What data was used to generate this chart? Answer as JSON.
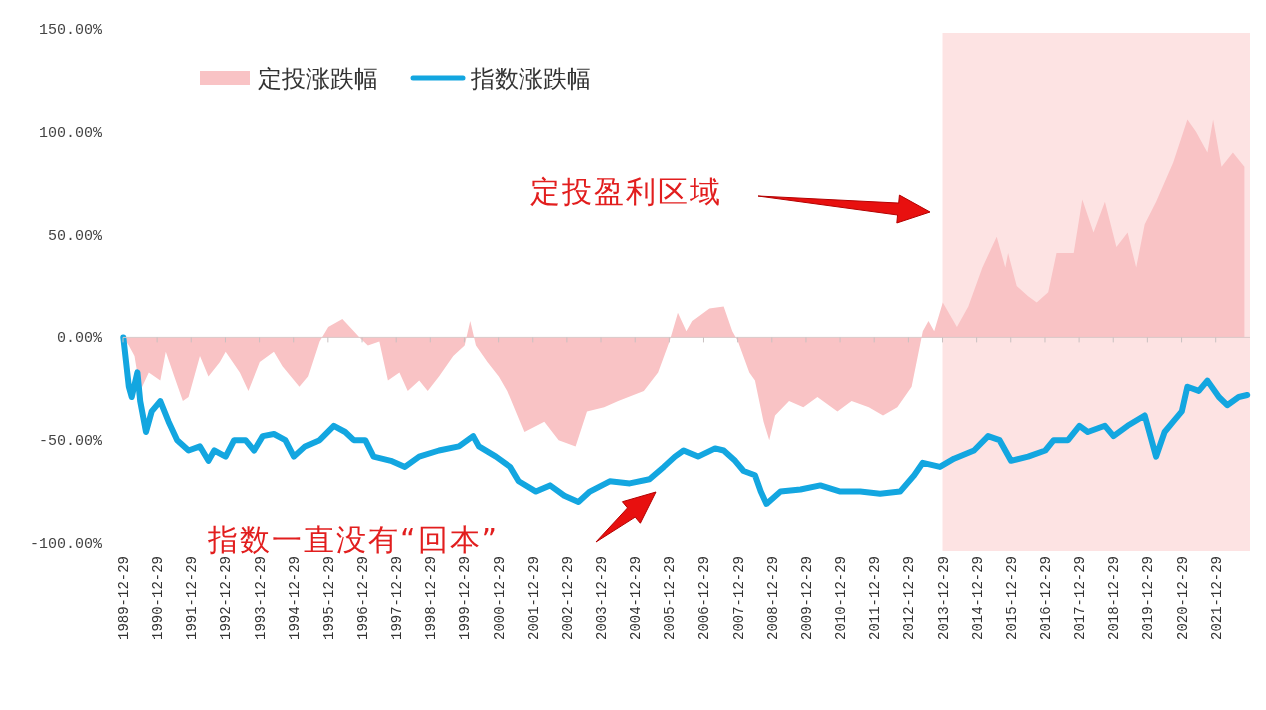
{
  "chart_data": {
    "type": "line",
    "legend": "top left",
    "xlim": [
      "1989-12-29",
      "2022-12-31"
    ],
    "xticks": [
      "1989-12-29",
      "1990-12-29",
      "1991-12-29",
      "1992-12-29",
      "1993-12-29",
      "1994-12-29",
      "1995-12-29",
      "1996-12-29",
      "1997-12-29",
      "1998-12-29",
      "1999-12-29",
      "2000-12-29",
      "2001-12-29",
      "2002-12-29",
      "2003-12-29",
      "2004-12-29",
      "2005-12-29",
      "2006-12-29",
      "2007-12-29",
      "2008-12-29",
      "2009-12-29",
      "2010-12-29",
      "2011-12-29",
      "2012-12-29",
      "2013-12-29",
      "2014-12-29",
      "2015-12-29",
      "2016-12-29",
      "2017-12-29",
      "2018-12-29",
      "2019-12-29",
      "2020-12-29",
      "2021-12-29"
    ],
    "ylim": [
      -100,
      150
    ],
    "yticks": [
      {
        "value": -100,
        "label": "-100.00%"
      },
      {
        "value": -50,
        "label": "-50.00%"
      },
      {
        "value": 0,
        "label": "0.00%"
      },
      {
        "value": 50,
        "label": "50.00%"
      },
      {
        "value": 100,
        "label": "100.00%"
      },
      {
        "value": 150,
        "label": "150.00%"
      }
    ],
    "bands": [
      {
        "axis": "x",
        "from": "2013-12-29",
        "to": "2022-12-31",
        "color": "#fde3e3"
      }
    ],
    "annotations": [
      "定投盈利区域",
      "指数一直没有“回本”"
    ],
    "series": [
      {
        "name": "定投涨跌幅",
        "type": "area",
        "color": "#f9c3c5",
        "x": [
          "1990-01",
          "1990-03",
          "1990-05",
          "1990-07",
          "1990-10",
          "1991-02",
          "1991-04",
          "1991-07",
          "1991-10",
          "1991-12",
          "1992-04",
          "1992-07",
          "1992-11",
          "1993-01",
          "1993-06",
          "1993-09",
          "1994-01",
          "1994-06",
          "1994-09",
          "1995-03",
          "1995-06",
          "1995-10",
          "1996-01",
          "1996-06",
          "1996-10",
          "1996-12",
          "1997-03",
          "1997-07",
          "1997-10",
          "1998-02",
          "1998-05",
          "1998-09",
          "1998-12",
          "1999-04",
          "1999-09",
          "2000-01",
          "2000-03",
          "2000-05",
          "2000-09",
          "2001-01",
          "2001-04",
          "2001-10",
          "2002-05",
          "2002-10",
          "2003-04",
          "2003-08",
          "2004-02",
          "2004-07",
          "2005-04",
          "2005-09",
          "2006-01",
          "2006-04",
          "2006-07",
          "2006-09",
          "2007-03",
          "2007-08",
          "2007-11",
          "2008-01",
          "2008-05",
          "2008-07",
          "2008-10",
          "2008-12",
          "2009-02",
          "2009-07",
          "2009-12",
          "2010-05",
          "2010-12",
          "2011-05",
          "2011-11",
          "2012-04",
          "2012-09",
          "2013-02",
          "2013-06",
          "2013-08",
          "2013-10",
          "2014-01",
          "2014-06",
          "2014-10",
          "2015-03",
          "2015-08",
          "2015-11",
          "2015-12",
          "2016-03",
          "2016-07",
          "2016-10",
          "2017-02",
          "2017-05",
          "2017-11",
          "2018-02",
          "2018-06",
          "2018-10",
          "2019-02",
          "2019-06",
          "2019-09",
          "2019-12",
          "2020-04",
          "2020-10",
          "2021-03",
          "2021-06",
          "2021-10",
          "2021-12",
          "2022-03",
          "2022-07",
          "2022-11"
        ],
        "values": [
          0,
          -4,
          -9,
          -26,
          -17,
          -21,
          -7,
          -19,
          -31,
          -29,
          -9,
          -19,
          -12,
          -7,
          -17,
          -26,
          -12,
          -7,
          -14,
          -24,
          -19,
          -2,
          5,
          9,
          3,
          0,
          -4,
          -2,
          -21,
          -17,
          -26,
          -21,
          -26,
          -19,
          -9,
          -4,
          8,
          -4,
          -12,
          -19,
          -26,
          -46,
          -41,
          -50,
          -53,
          -36,
          -34,
          -31,
          -26,
          -17,
          -2,
          12,
          3,
          8,
          14,
          15,
          3,
          -2,
          -17,
          -21,
          -41,
          -50,
          -38,
          -31,
          -34,
          -29,
          -36,
          -31,
          -34,
          -38,
          -34,
          -24,
          3,
          8,
          3,
          17,
          5,
          15,
          34,
          49,
          34,
          41,
          25,
          20,
          17,
          22,
          41,
          41,
          67,
          51,
          66,
          44,
          51,
          34,
          55,
          66,
          85,
          106,
          100,
          90,
          106,
          83,
          90,
          83
        ]
      },
      {
        "name": "指数涨跌幅",
        "type": "line",
        "color": "#13a6e0",
        "x": [
          "1990-01",
          "1990-03",
          "1990-04",
          "1990-06",
          "1990-07",
          "1990-09",
          "1990-11",
          "1991-02",
          "1991-05",
          "1991-08",
          "1991-12",
          "1992-04",
          "1992-07",
          "1992-09",
          "1993-01",
          "1993-04",
          "1993-08",
          "1993-11",
          "1994-02",
          "1994-06",
          "1994-10",
          "1995-01",
          "1995-05",
          "1995-10",
          "1996-03",
          "1996-07",
          "1996-10",
          "1997-02",
          "1997-05",
          "1997-11",
          "1998-04",
          "1998-09",
          "1999-04",
          "1999-11",
          "2000-04",
          "2000-06",
          "2000-12",
          "2001-05",
          "2001-08",
          "2002-02",
          "2002-07",
          "2002-12",
          "2003-05",
          "2003-09",
          "2004-04",
          "2004-11",
          "2005-06",
          "2005-11",
          "2006-03",
          "2006-06",
          "2006-11",
          "2007-05",
          "2007-08",
          "2007-12",
          "2008-03",
          "2008-07",
          "2008-09",
          "2008-11",
          "2009-04",
          "2009-11",
          "2010-06",
          "2011-01",
          "2011-08",
          "2012-03",
          "2012-10",
          "2013-03",
          "2013-06",
          "2013-12",
          "2014-05",
          "2014-12",
          "2015-05",
          "2015-09",
          "2016-01",
          "2016-07",
          "2017-01",
          "2017-04",
          "2017-09",
          "2018-01",
          "2018-04",
          "2018-10",
          "2019-01",
          "2019-06",
          "2019-12",
          "2020-04",
          "2020-07",
          "2020-10",
          "2021-01",
          "2021-03",
          "2021-07",
          "2021-10",
          "2022-02",
          "2022-05",
          "2022-09",
          "2022-12"
        ],
        "values": [
          0,
          -24,
          -29,
          -17,
          -31,
          -46,
          -36,
          -31,
          -41,
          -50,
          -55,
          -53,
          -60,
          -55,
          -58,
          -50,
          -50,
          -55,
          -48,
          -47,
          -50,
          -58,
          -53,
          -50,
          -43,
          -46,
          -50,
          -50,
          -58,
          -60,
          -63,
          -58,
          -55,
          -53,
          -48,
          -53,
          -58,
          -63,
          -70,
          -75,
          -72,
          -77,
          -80,
          -75,
          -70,
          -71,
          -69,
          -63,
          -58,
          -55,
          -58,
          -54,
          -55,
          -60,
          -65,
          -67,
          -75,
          -81,
          -75,
          -74,
          -72,
          -75,
          -75,
          -76,
          -75,
          -67,
          -61,
          -63,
          -59,
          -55,
          -48,
          -50,
          -60,
          -58,
          -55,
          -50,
          -50,
          -43,
          -46,
          -43,
          -48,
          -43,
          -38,
          -58,
          -46,
          -41,
          -36,
          -24,
          -26,
          -21,
          -29,
          -33,
          -29,
          -28
        ]
      }
    ]
  }
}
